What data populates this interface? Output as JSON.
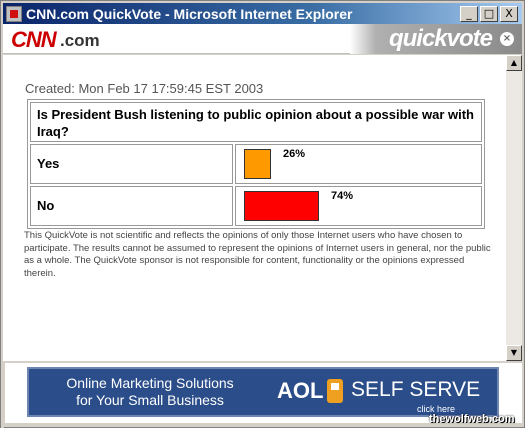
{
  "window": {
    "title": "CNN.com QuickVote - Microsoft Internet Explorer",
    "minimize": "_",
    "maximize": "□",
    "close": "X"
  },
  "header": {
    "logo": "CNN",
    "logo_suffix": ".com",
    "banner": "quickvote",
    "banner_close": "×"
  },
  "poll": {
    "created": "Created: Mon Feb 17 17:59:45 EST 2003",
    "question": "Is President Bush listening to public opinion about a possible war with Iraq?",
    "options": [
      {
        "label": "Yes",
        "percent_text": "26%",
        "percent": 26,
        "color": "#ff9900"
      },
      {
        "label": "No",
        "percent_text": "74%",
        "percent": 74,
        "color": "#ff0000"
      }
    ],
    "disclaimer": "This QuickVote is not scientific and reflects the opinions of only those Internet users who have chosen to participate. The results cannot be assumed to represent the opinions of Internet users in general, nor the public as a whole. The QuickVote sponsor is not responsible for content, functionality or the opinions expressed therein."
  },
  "ad": {
    "line1": "Online Marketing Solutions",
    "line2": "for Your Small Business",
    "brand": "AOL",
    "product": "SELF SERVE",
    "click": "click here"
  },
  "watermark": "thewolfweb.com"
}
